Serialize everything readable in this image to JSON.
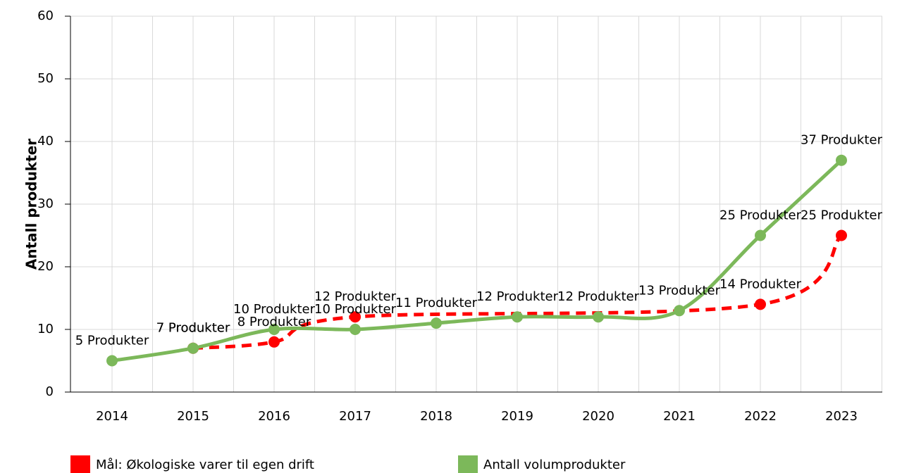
{
  "chart_data": {
    "type": "line",
    "y_label": "Antall produkter",
    "categories": [
      "2014",
      "2015",
      "2016",
      "2017",
      "2018",
      "2019",
      "2020",
      "2021",
      "2022",
      "2023"
    ],
    "ylim": [
      0,
      60
    ],
    "yticks": [
      0,
      10,
      20,
      30,
      40,
      50,
      60
    ],
    "grid": true,
    "legend": "bottom",
    "series": [
      {
        "name": "Mål: Økologiske varer til egen drift",
        "color": "#ff0000",
        "dashed": true,
        "x": [
          "2015",
          "2016",
          "2017",
          "2022",
          "2023"
        ],
        "values": [
          7,
          8,
          12,
          14,
          25
        ],
        "value_labels": [
          "7 Produkter",
          "8 Produkter",
          "12 Produkter",
          "14 Produkter",
          "25 Produkter"
        ]
      },
      {
        "name": "Antall volumprodukter",
        "color": "#7cb85a",
        "dashed": false,
        "x": [
          "2014",
          "2015",
          "2016",
          "2017",
          "2018",
          "2019",
          "2020",
          "2021",
          "2022",
          "2023"
        ],
        "values": [
          5,
          7,
          10,
          10,
          11,
          12,
          12,
          13,
          25,
          37
        ],
        "value_labels": [
          "5 Produkter",
          "7 Produkter",
          "10 Produkter",
          "10 Produkter",
          "11 Produkter",
          "12 Produkter",
          "12 Produkter",
          "13 Produkter",
          "25 Produkter",
          "37 Produkter"
        ]
      }
    ]
  }
}
